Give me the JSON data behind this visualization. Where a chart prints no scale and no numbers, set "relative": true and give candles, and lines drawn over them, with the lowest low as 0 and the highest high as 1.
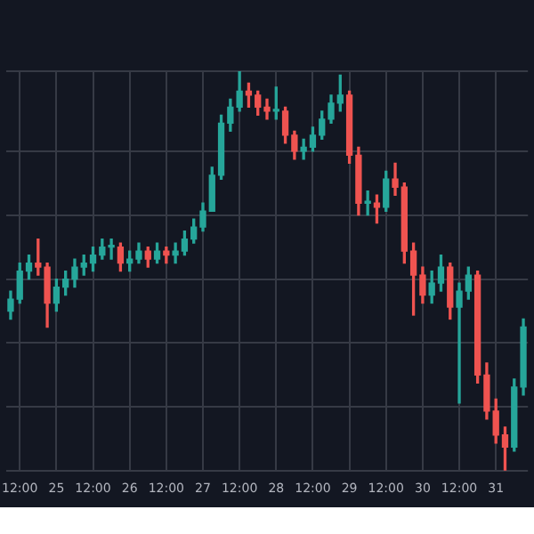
{
  "chart_data": {
    "type": "candlestick",
    "relative": true,
    "grid": true,
    "categories": [
      null,
      "12:00",
      null,
      null,
      null,
      "25",
      null,
      null,
      null,
      "12:00",
      null,
      null,
      null,
      "26",
      null,
      null,
      null,
      "12:00",
      null,
      null,
      null,
      "27",
      null,
      null,
      null,
      "12:00",
      null,
      null,
      null,
      "28",
      null,
      null,
      null,
      "12:00",
      null,
      null,
      null,
      "29",
      null,
      null,
      null,
      "12:00",
      null,
      null,
      null,
      "30",
      null,
      null,
      null,
      "12:00",
      null,
      null,
      null,
      "31",
      null,
      null,
      null
    ],
    "ohlc": [
      [
        0.4,
        0.45,
        0.38,
        0.43
      ],
      [
        0.43,
        0.52,
        0.42,
        0.5
      ],
      [
        0.5,
        0.54,
        0.48,
        0.52
      ],
      [
        0.52,
        0.58,
        0.49,
        0.51
      ],
      [
        0.51,
        0.52,
        0.36,
        0.42
      ],
      [
        0.42,
        0.48,
        0.4,
        0.46
      ],
      [
        0.46,
        0.5,
        0.44,
        0.48
      ],
      [
        0.48,
        0.53,
        0.46,
        0.51
      ],
      [
        0.51,
        0.54,
        0.49,
        0.52
      ],
      [
        0.52,
        0.56,
        0.5,
        0.54
      ],
      [
        0.54,
        0.58,
        0.53,
        0.56
      ],
      [
        0.56,
        0.58,
        0.53,
        0.56
      ],
      [
        0.56,
        0.57,
        0.5,
        0.52
      ],
      [
        0.52,
        0.55,
        0.5,
        0.53
      ],
      [
        0.53,
        0.57,
        0.52,
        0.55
      ],
      [
        0.55,
        0.56,
        0.51,
        0.53
      ],
      [
        0.53,
        0.57,
        0.52,
        0.55
      ],
      [
        0.55,
        0.56,
        0.52,
        0.54
      ],
      [
        0.54,
        0.57,
        0.52,
        0.55
      ],
      [
        0.55,
        0.6,
        0.54,
        0.58
      ],
      [
        0.58,
        0.63,
        0.57,
        0.61
      ],
      [
        0.61,
        0.67,
        0.6,
        0.65
      ],
      [
        0.65,
        0.76,
        0.65,
        0.74
      ],
      [
        0.74,
        0.89,
        0.73,
        0.87
      ],
      [
        0.87,
        0.93,
        0.85,
        0.91
      ],
      [
        0.91,
        1.0,
        0.9,
        0.95
      ],
      [
        0.95,
        0.97,
        0.91,
        0.94
      ],
      [
        0.94,
        0.95,
        0.89,
        0.91
      ],
      [
        0.91,
        0.93,
        0.88,
        0.9
      ],
      [
        0.9,
        0.96,
        0.88,
        0.9
      ],
      [
        0.9,
        0.91,
        0.82,
        0.84
      ],
      [
        0.84,
        0.85,
        0.78,
        0.8
      ],
      [
        0.8,
        0.83,
        0.78,
        0.81
      ],
      [
        0.81,
        0.86,
        0.8,
        0.84
      ],
      [
        0.84,
        0.9,
        0.83,
        0.88
      ],
      [
        0.88,
        0.94,
        0.87,
        0.92
      ],
      [
        0.92,
        0.99,
        0.9,
        0.94
      ],
      [
        0.94,
        0.95,
        0.77,
        0.79
      ],
      [
        0.79,
        0.81,
        0.64,
        0.67
      ],
      [
        0.67,
        0.7,
        0.64,
        0.67
      ],
      [
        0.67,
        0.69,
        0.62,
        0.66
      ],
      [
        0.66,
        0.75,
        0.65,
        0.73
      ],
      [
        0.73,
        0.77,
        0.69,
        0.71
      ],
      [
        0.71,
        0.72,
        0.52,
        0.55
      ],
      [
        0.55,
        0.57,
        0.39,
        0.49
      ],
      [
        0.49,
        0.51,
        0.42,
        0.44
      ],
      [
        0.44,
        0.5,
        0.42,
        0.47
      ],
      [
        0.47,
        0.54,
        0.45,
        0.51
      ],
      [
        0.51,
        0.52,
        0.38,
        0.41
      ],
      [
        0.41,
        0.47,
        0.17,
        0.45
      ],
      [
        0.45,
        0.51,
        0.43,
        0.49
      ],
      [
        0.49,
        0.5,
        0.22,
        0.24
      ],
      [
        0.24,
        0.27,
        0.13,
        0.15
      ],
      [
        0.15,
        0.18,
        0.07,
        0.09
      ],
      [
        0.09,
        0.11,
        0.0,
        0.06
      ],
      [
        0.06,
        0.23,
        0.05,
        0.21
      ],
      [
        0.21,
        0.38,
        0.19,
        0.36
      ]
    ],
    "colors": [
      "#26a69a",
      "#26a69a",
      "#26a69a",
      "#ef5350",
      "#ef5350",
      "#26a69a",
      "#26a69a",
      "#26a69a",
      "#26a69a",
      "#26a69a",
      "#26a69a",
      "#26a69a",
      "#ef5350",
      "#26a69a",
      "#26a69a",
      "#ef5350",
      "#26a69a",
      "#ef5350",
      "#26a69a",
      "#26a69a",
      "#26a69a",
      "#26a69a",
      "#26a69a",
      "#26a69a",
      "#26a69a",
      "#26a69a",
      "#ef5350",
      "#ef5350",
      "#ef5350",
      "#26a69a",
      "#ef5350",
      "#ef5350",
      "#26a69a",
      "#26a69a",
      "#26a69a",
      "#26a69a",
      "#26a69a",
      "#ef5350",
      "#ef5350",
      "#26a69a",
      "#ef5350",
      "#26a69a",
      "#ef5350",
      "#ef5350",
      "#ef5350",
      "#ef5350",
      "#26a69a",
      "#26a69a",
      "#ef5350",
      "#26a69a",
      "#26a69a",
      "#ef5350",
      "#ef5350",
      "#ef5350",
      "#ef5350",
      "#26a69a",
      "#26a69a"
    ]
  }
}
